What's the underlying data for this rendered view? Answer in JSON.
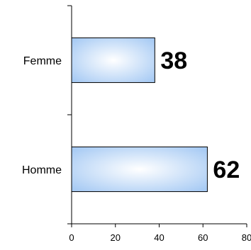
{
  "chart_data": {
    "type": "bar",
    "orientation": "horizontal",
    "categories": [
      "Femme",
      "Homme"
    ],
    "values": [
      38,
      62
    ],
    "data_labels": [
      "38",
      "62"
    ],
    "xlim": [
      0,
      80
    ],
    "x_ticks": [
      "0",
      "20",
      "40",
      "60",
      "80"
    ],
    "title": "",
    "xlabel": "",
    "ylabel": "",
    "grid": false,
    "legend": "none",
    "bar_colors": {
      "edge": "#A8CBF4",
      "center": "#FFFFFF",
      "outline": "#000000"
    }
  }
}
